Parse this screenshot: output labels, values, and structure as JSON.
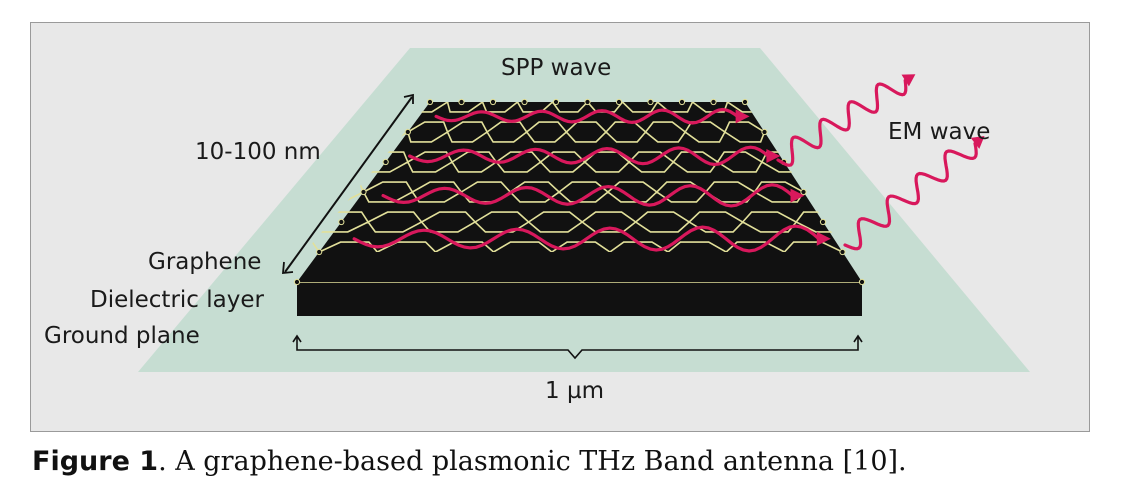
{
  "labels": {
    "spp_wave": "SPP wave",
    "em_wave": "EM wave",
    "thickness": "10-100 nm",
    "graphene": "Graphene",
    "dielectric": "Dielectric layer",
    "ground": "Ground plane",
    "width": "1 µm"
  },
  "caption": {
    "label": "Figure 1",
    "text": ". A graphene-based plasmonic THz Band antenna [10]."
  },
  "colors": {
    "panel_bg": "#e8e8e8",
    "glow": "#c6ddd2",
    "sheet": "#111111",
    "lattice": "#e2e09a",
    "wave": "#d8185c"
  }
}
